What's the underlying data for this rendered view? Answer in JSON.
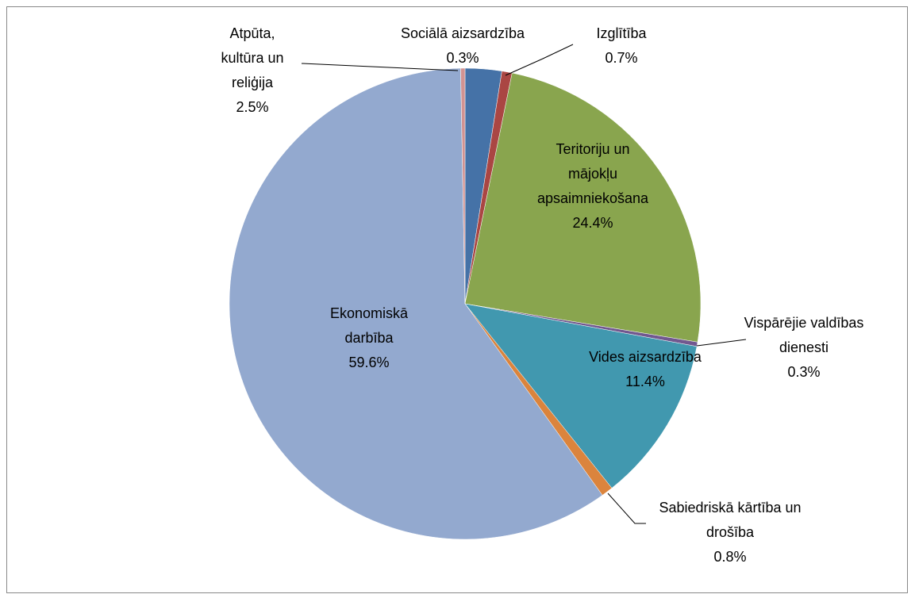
{
  "chart_data": {
    "type": "pie",
    "categories": [
      "Atpūta, kultūra un reliģija",
      "Izglītība",
      "Teritoriju un mājokļu apsaimniekošana",
      "Vispārējie valdības dienesti",
      "Vides aizsardzība",
      "Sabiedriskā kārtība un drošība",
      "Ekonomiskā darbība",
      "Sociālā aizsardzība"
    ],
    "values": [
      2.5,
      0.7,
      24.4,
      0.3,
      11.4,
      0.8,
      59.6,
      0.3
    ],
    "value_labels": [
      "2.5%",
      "0.7%",
      "24.4%",
      "0.3%",
      "11.4%",
      "0.8%",
      "59.6%",
      "0.3%"
    ],
    "colors": [
      "#4572a7",
      "#aa4643",
      "#89a54e",
      "#71588f",
      "#4198af",
      "#db843d",
      "#93a9cf",
      "#d19392"
    ]
  }
}
